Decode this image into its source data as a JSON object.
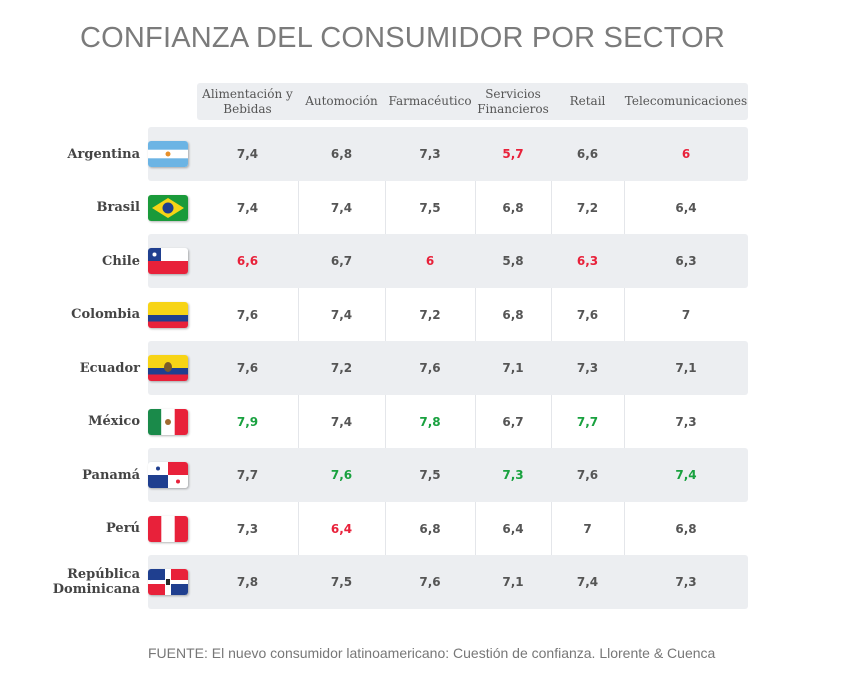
{
  "title": "CONFIANZA DEL CONSUMIDOR POR SECTOR",
  "footer": "FUENTE: El nuevo consumidor latinoamericano: Cuestión de confianza. Llorente & Cuenca",
  "colors": {
    "low": "#e8213a",
    "high": "#19a13f",
    "normal": "#555555",
    "row_alt": "#eceef1"
  },
  "chart_data": {
    "type": "table",
    "title": "CONFIANZA DEL CONSUMIDOR POR SECTOR",
    "columns": [
      "Alimentación y Bebidas",
      "Automoción",
      "Farmacéutico",
      "Servicios Financieros",
      "Retail",
      "Telecomunicaciones"
    ],
    "rows": [
      {
        "country": "Argentina",
        "flag": "argentina-flag",
        "values": [
          "7,4",
          "6,8",
          "7,3",
          "5,7",
          "6,6",
          "6"
        ],
        "highlight": [
          "",
          "",
          "",
          "low",
          "",
          "low"
        ]
      },
      {
        "country": "Brasil",
        "flag": "brazil-flag",
        "values": [
          "7,4",
          "7,4",
          "7,5",
          "6,8",
          "7,2",
          "6,4"
        ],
        "highlight": [
          "",
          "",
          "",
          "",
          "",
          ""
        ]
      },
      {
        "country": "Chile",
        "flag": "chile-flag",
        "values": [
          "6,6",
          "6,7",
          "6",
          "5,8",
          "6,3",
          "6,3"
        ],
        "highlight": [
          "low",
          "",
          "low",
          "",
          "low",
          ""
        ]
      },
      {
        "country": "Colombia",
        "flag": "colombia-flag",
        "values": [
          "7,6",
          "7,4",
          "7,2",
          "6,8",
          "7,6",
          "7"
        ],
        "highlight": [
          "",
          "",
          "",
          "",
          "",
          ""
        ]
      },
      {
        "country": "Ecuador",
        "flag": "ecuador-flag",
        "values": [
          "7,6",
          "7,2",
          "7,6",
          "7,1",
          "7,3",
          "7,1"
        ],
        "highlight": [
          "",
          "",
          "",
          "",
          "",
          ""
        ]
      },
      {
        "country": "México",
        "flag": "mexico-flag",
        "values": [
          "7,9",
          "7,4",
          "7,8",
          "6,7",
          "7,7",
          "7,3"
        ],
        "highlight": [
          "high",
          "",
          "high",
          "",
          "high",
          ""
        ]
      },
      {
        "country": "Panamá",
        "flag": "panama-flag",
        "values": [
          "7,7",
          "7,6",
          "7,5",
          "7,3",
          "7,6",
          "7,4"
        ],
        "highlight": [
          "",
          "high",
          "",
          "high",
          "",
          "high"
        ]
      },
      {
        "country": "Perú",
        "flag": "peru-flag",
        "values": [
          "7,3",
          "6,4",
          "6,8",
          "6,4",
          "7",
          "6,8"
        ],
        "highlight": [
          "",
          "low",
          "",
          "",
          "",
          ""
        ]
      },
      {
        "country": "República Dominicana",
        "flag": "dominican-republic-flag",
        "values": [
          "7,8",
          "7,5",
          "7,6",
          "7,1",
          "7,4",
          "7,3"
        ],
        "highlight": [
          "",
          "",
          "",
          "",
          "",
          ""
        ]
      }
    ]
  }
}
